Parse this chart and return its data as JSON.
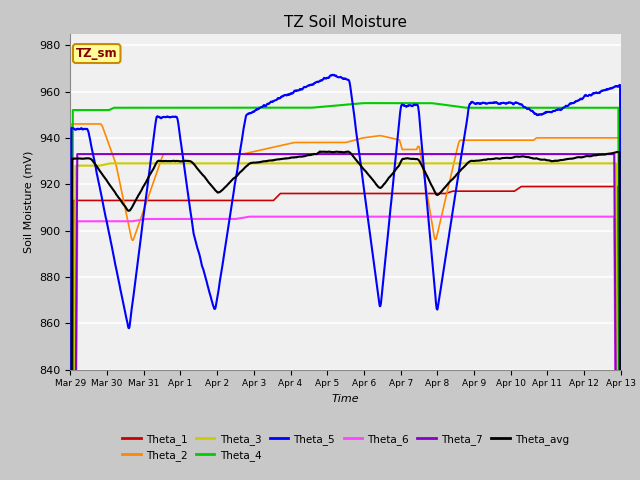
{
  "title": "TZ Soil Moisture",
  "ylabel": "Soil Moisture (mV)",
  "xlabel": "Time",
  "ylim": [
    840,
    985
  ],
  "yticks": [
    840,
    860,
    880,
    900,
    920,
    940,
    960,
    980
  ],
  "plot_bg_color": "#f0f0f0",
  "fig_bg_color": "#c8c8c8",
  "series_colors": {
    "Theta_1": "#cc0000",
    "Theta_2": "#ff8800",
    "Theta_3": "#cccc00",
    "Theta_4": "#00cc00",
    "Theta_5": "#0000ff",
    "Theta_6": "#ff44ff",
    "Theta_7": "#8800cc",
    "Theta_avg": "#000000"
  },
  "x_tick_labels": [
    "Mar 29",
    "Mar 30",
    "Mar 31",
    "Apr 1",
    "Apr 2",
    "Apr 3",
    "Apr 4",
    "Apr 5",
    "Apr 6",
    "Apr 7",
    "Apr 8",
    "Apr 9",
    "Apr 10",
    "Apr 11",
    "Apr 12",
    "Apr 13"
  ],
  "legend_label": "TZ_sm",
  "legend_box_facecolor": "#ffff99",
  "legend_box_edgecolor": "#cc8800"
}
